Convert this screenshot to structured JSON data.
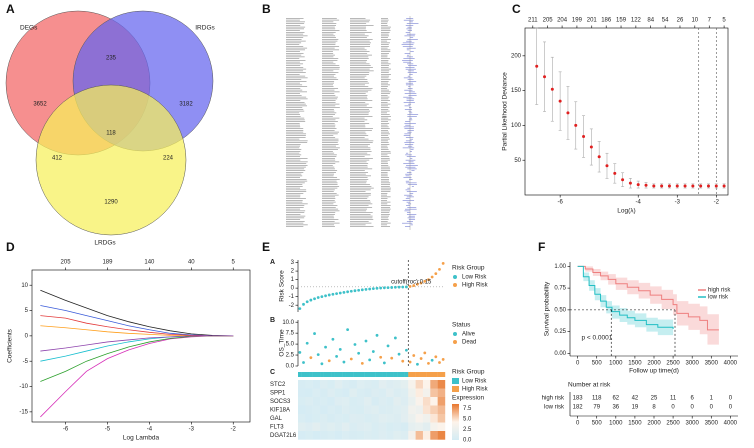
{
  "figure_labels": [
    "A",
    "B",
    "C",
    "D",
    "E",
    "F"
  ],
  "chart_data": [
    {
      "type": "venn",
      "sets": [
        {
          "name": "DEGs",
          "color": "#f26464"
        },
        {
          "name": "IRDGs",
          "color": "#6464ee"
        },
        {
          "name": "LRDGs",
          "color": "#f6f05a"
        }
      ],
      "regions": {
        "a": 3652,
        "b": 3182,
        "c": 1290,
        "ab": 235,
        "ac": 412,
        "bc": 224,
        "abc": 118
      }
    },
    {
      "type": "cv",
      "xlabel": "Log(λ)",
      "ylabel": "Partial Likelihood Deviance",
      "color": "#e02020",
      "x": [
        -6.6,
        -6.4,
        -6.2,
        -6,
        -5.8,
        -5.6,
        -5.4,
        -5.2,
        -5,
        -4.8,
        -4.6,
        -4.4,
        -4.2,
        -4,
        -3.8,
        -3.6,
        -3.4,
        -3.2,
        -3,
        -2.8,
        -2.6,
        -2.4,
        -2.2,
        -2,
        -1.8
      ],
      "values": [
        185,
        170,
        152,
        135,
        118,
        100,
        84,
        69,
        55,
        42,
        31,
        22,
        17,
        15,
        14,
        13,
        13,
        13,
        13,
        13,
        13,
        13,
        13,
        13,
        13
      ],
      "errors": [
        55,
        50,
        46,
        42,
        38,
        34,
        30,
        26,
        22,
        18,
        14,
        10,
        7,
        5,
        4,
        3,
        3,
        3,
        3,
        3,
        3,
        3,
        3,
        3,
        3
      ],
      "xlim": [
        -6.9,
        -1.7
      ],
      "xticks": [
        -6,
        -4,
        -3,
        -2
      ],
      "ylim": [
        0,
        240
      ],
      "yticks": [
        50,
        100,
        150,
        200
      ],
      "top_ticks": {
        "x": [
          -6.7,
          -6.32,
          -5.95,
          -5.57,
          -5.19,
          -4.82,
          -4.44,
          -4.06,
          -3.68,
          -3.31,
          -2.93,
          -2.55,
          -2.18,
          -1.8
        ],
        "labels": [
          211,
          205,
          204,
          199,
          201,
          186,
          159,
          122,
          84,
          54,
          26,
          10,
          7,
          5
        ]
      },
      "vlines": [
        -2.45,
        -2.0
      ]
    },
    {
      "type": "coef",
      "xlabel": "Log Lambda",
      "ylabel": "Coefficients",
      "x": [
        -6.6,
        -6,
        -5.5,
        -5,
        -4.5,
        -4,
        -3.5,
        -3,
        -2.5,
        -2
      ],
      "series": [
        {
          "color": "#222222",
          "values": [
            9,
            7,
            5.5,
            4,
            2.8,
            1.8,
            1,
            0.4,
            0.1,
            0
          ]
        },
        {
          "color": "#d62fb8",
          "values": [
            -16,
            -11,
            -7,
            -4.5,
            -2.8,
            -1.5,
            -0.6,
            -0.2,
            0,
            0
          ]
        },
        {
          "color": "#3a5bd9",
          "values": [
            6,
            5,
            4,
            3,
            2,
            1.2,
            0.5,
            0.2,
            0,
            0
          ]
        },
        {
          "color": "#2ca02c",
          "values": [
            -9,
            -7,
            -5,
            -3.5,
            -2.2,
            -1.2,
            -0.5,
            -0.1,
            0,
            0
          ]
        },
        {
          "color": "#e33b3b",
          "values": [
            4,
            3.5,
            2.5,
            1.8,
            1.2,
            0.7,
            0.3,
            0.1,
            0,
            0
          ]
        },
        {
          "color": "#17becf",
          "values": [
            -5,
            -4,
            -3,
            -2,
            -1.2,
            -0.6,
            -0.2,
            0,
            0,
            0
          ]
        },
        {
          "color": "#ff9f1c",
          "values": [
            2,
            1.6,
            1.2,
            0.8,
            0.5,
            0.3,
            0.1,
            0,
            0,
            0
          ]
        },
        {
          "color": "#8e44ad",
          "values": [
            -3,
            -2.4,
            -1.8,
            -1.2,
            -0.8,
            -0.4,
            -0.2,
            0,
            0,
            0
          ]
        }
      ],
      "xlim": [
        -6.8,
        -1.6
      ],
      "xticks": [
        -6,
        -5,
        -4,
        -3,
        -2
      ],
      "ylim": [
        -17,
        13
      ],
      "yticks": [
        -15,
        -10,
        -5,
        0,
        5,
        10
      ],
      "top_ticks": {
        "x": [
          -6,
          -5,
          -4,
          -3,
          -2
        ],
        "labels": [
          205,
          189,
          140,
          40,
          5
        ]
      }
    },
    {
      "type": "risk",
      "panels": [
        "A",
        "B",
        "C"
      ],
      "risk_score": {
        "ylabel": "Risk Score",
        "values": [
          -2.4,
          -1.9,
          -1.6,
          -1.4,
          -1.25,
          -1.1,
          -1.0,
          -0.9,
          -0.8,
          -0.72,
          -0.65,
          -0.57,
          -0.5,
          -0.43,
          -0.37,
          -0.3,
          -0.25,
          -0.2,
          -0.15,
          -0.1,
          -0.06,
          -0.02,
          0.01,
          0.04,
          0.06,
          0.08,
          0.1,
          0.12,
          0.13,
          0.14,
          0.2,
          0.3,
          0.45,
          0.6,
          0.8,
          1.0,
          1.3,
          1.7,
          2.2,
          2.9
        ],
        "ylim": [
          -2.8,
          3.3
        ],
        "yticks": [
          -2,
          -1,
          0,
          1,
          2,
          3
        ],
        "cutoff": 0.15,
        "cutoff_label": "cutoff(roc):0.15"
      },
      "group_legend": {
        "title": "Risk Group",
        "labels": [
          "Low Risk",
          "High Risk"
        ],
        "colors": [
          "#3ec1c9",
          "#f5a04a"
        ]
      },
      "os_time": {
        "ylabel": "OS_Time",
        "values": [
          3.1,
          0.8,
          5.2,
          1.9,
          7.4,
          2.6,
          0.5,
          4.3,
          1.2,
          6.1,
          2.2,
          3.8,
          0.9,
          8.3,
          1.6,
          4.9,
          2.9,
          0.6,
          5.7,
          1.4,
          3.3,
          7.0,
          2.0,
          0.7,
          4.6,
          1.8,
          6.4,
          2.7,
          1.1,
          3.6,
          0.9,
          2.4,
          0.4,
          1.7,
          3.0,
          0.6,
          1.3,
          2.1,
          0.8,
          1.5
        ],
        "status": [
          0,
          0,
          0,
          1,
          0,
          0,
          0,
          0,
          1,
          0,
          0,
          0,
          0,
          0,
          1,
          0,
          0,
          1,
          0,
          0,
          0,
          0,
          1,
          0,
          0,
          1,
          0,
          0,
          1,
          0,
          1,
          1,
          0,
          1,
          1,
          1,
          0,
          1,
          1,
          1
        ],
        "ylim": [
          0,
          10.5
        ],
        "yticks": [
          {
            "value": 0,
            "label": "0.0"
          },
          2.5,
          {
            "value": 5,
            "label": "5.0"
          },
          7.5,
          {
            "value": 10,
            "label": "10.0"
          }
        ],
        "legend": {
          "title": "Status",
          "labels": [
            "Alive",
            "Dead"
          ],
          "colors": [
            "#3ec1c9",
            "#f5a04a"
          ]
        }
      },
      "heatmap": {
        "genes": [
          "STC2",
          "SPP1",
          "SOCS3",
          "KIF18A",
          "GAL",
          "FLT3",
          "DGAT2L6"
        ],
        "values": [
          [
            0.3,
            0.5,
            0.2,
            0.8,
            0.4,
            1.2,
            0.6,
            0.3,
            1.0,
            0.7,
            0.5,
            1.4,
            0.9,
            1.1,
            1.6,
            3.5,
            5.2,
            4.1,
            6.8,
            7.9
          ],
          [
            0.2,
            0.1,
            0.6,
            0.3,
            0.9,
            0.4,
            0.2,
            1.1,
            0.5,
            0.3,
            0.8,
            0.6,
            1.3,
            0.7,
            1.0,
            2.8,
            4.5,
            3.2,
            5.9,
            6.5
          ],
          [
            0.4,
            0.7,
            0.3,
            0.5,
            0.2,
            0.9,
            1.0,
            0.4,
            0.6,
            1.2,
            0.3,
            0.8,
            0.5,
            1.5,
            0.9,
            2.2,
            3.8,
            5.0,
            4.2,
            7.1
          ],
          [
            0.1,
            0.3,
            0.5,
            0.2,
            0.6,
            0.3,
            0.8,
            0.5,
            0.4,
            0.9,
            1.1,
            0.6,
            0.7,
            1.0,
            1.3,
            3.0,
            2.6,
            4.8,
            5.5,
            6.2
          ],
          [
            0.5,
            0.2,
            0.4,
            0.7,
            0.3,
            0.6,
            0.4,
            0.9,
            0.8,
            0.5,
            0.7,
            1.2,
            1.0,
            0.8,
            1.4,
            2.4,
            3.6,
            2.9,
            4.7,
            5.8
          ],
          [
            1.2,
            0.9,
            1.5,
            0.8,
            1.1,
            0.7,
            1.3,
            0.6,
            0.9,
            1.0,
            0.5,
            0.8,
            0.4,
            0.6,
            0.3,
            1.8,
            2.2,
            1.5,
            3.4,
            4.0
          ],
          [
            0.2,
            0.4,
            0.1,
            0.3,
            0.5,
            0.2,
            0.6,
            0.3,
            0.4,
            0.7,
            0.5,
            0.9,
            0.6,
            1.1,
            0.8,
            3.3,
            6.1,
            4.4,
            7.2,
            8.0
          ]
        ],
        "vlim": [
          0,
          8.5
        ],
        "color_scale": [
          "#d4ecf4",
          "#fdf3ea",
          "#e8772e"
        ],
        "legend": {
          "title": "Expression",
          "ticks": [
            7.5,
            {
              "value": 5,
              "label": "5.0"
            },
            2.5,
            {
              "value": 0,
              "label": "0.0"
            }
          ]
        }
      }
    },
    {
      "type": "km",
      "xlabel": "Follow up time(d)",
      "ylabel": "Survival probability",
      "annotation": "p < 0.0001",
      "series": [
        {
          "name": "high risk",
          "color": "#ee7f7f",
          "band": "#f6c2c2",
          "x": [
            0,
            200,
            400,
            600,
            800,
            1000,
            1300,
            1600,
            1900,
            2200,
            2500,
            2600,
            2900,
            3200,
            3400,
            3700
          ],
          "values": [
            1,
            0.97,
            0.93,
            0.89,
            0.85,
            0.8,
            0.76,
            0.72,
            0.67,
            0.62,
            0.56,
            0.46,
            0.42,
            0.38,
            0.27,
            0.27
          ],
          "lower": [
            1,
            0.94,
            0.89,
            0.84,
            0.79,
            0.73,
            0.68,
            0.63,
            0.57,
            0.51,
            0.44,
            0.32,
            0.27,
            0.22,
            0.1,
            0.1
          ],
          "upper": [
            1,
            1,
            0.97,
            0.94,
            0.91,
            0.87,
            0.84,
            0.81,
            0.77,
            0.73,
            0.68,
            0.6,
            0.57,
            0.54,
            0.45,
            0.45
          ]
        },
        {
          "name": "low risk",
          "color": "#22bfc4",
          "band": "#9fe3e6",
          "x": [
            0,
            150,
            300,
            450,
            600,
            750,
            900,
            1100,
            1300,
            1500,
            1800,
            2100,
            2500
          ],
          "values": [
            1,
            0.88,
            0.78,
            0.68,
            0.6,
            0.53,
            0.48,
            0.44,
            0.41,
            0.38,
            0.33,
            0.3,
            0.28
          ],
          "lower": [
            1,
            0.83,
            0.72,
            0.61,
            0.53,
            0.46,
            0.4,
            0.36,
            0.33,
            0.3,
            0.25,
            0.21,
            0.18
          ],
          "upper": [
            1,
            0.93,
            0.84,
            0.75,
            0.67,
            0.6,
            0.55,
            0.52,
            0.49,
            0.46,
            0.41,
            0.39,
            0.38
          ]
        }
      ],
      "medians": {
        "y": 0.5,
        "x": [
          2550,
          880
        ]
      },
      "xlim": [
        -200,
        4200
      ],
      "xticks": [
        0,
        500,
        1000,
        1500,
        2000,
        2500,
        3000,
        3500,
        4000
      ],
      "ylim": [
        -0.03,
        1.05
      ],
      "yticks": [
        {
          "value": 0,
          "label": "0.00"
        },
        0.25,
        {
          "value": 0.5,
          "label": "0.50"
        },
        0.75,
        {
          "value": 1,
          "label": "1.00"
        }
      ],
      "risk_table": {
        "title": "Number at risk",
        "rows": [
          {
            "name": "high risk",
            "values": [
              183,
              118,
              62,
              42,
              25,
              11,
              6,
              1,
              0
            ]
          },
          {
            "name": "low risk",
            "values": [
              182,
              79,
              36,
              19,
              8,
              0,
              0,
              0,
              0
            ]
          }
        ]
      }
    }
  ]
}
